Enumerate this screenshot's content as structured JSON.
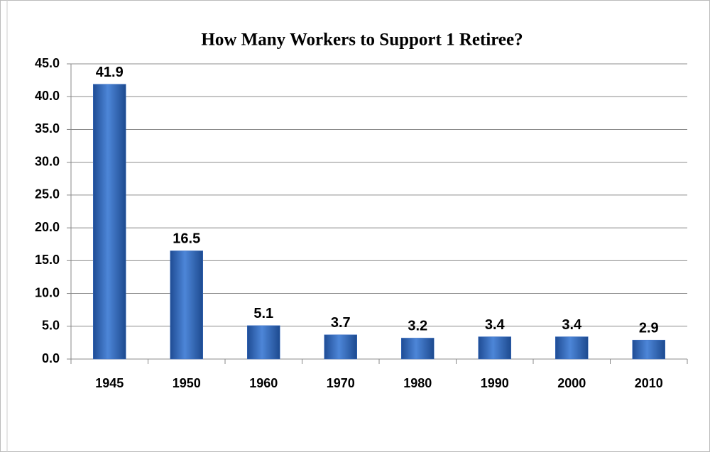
{
  "chart_data": {
    "type": "bar",
    "title": "How Many Workers to Support 1 Retiree?",
    "categories": [
      "1945",
      "1950",
      "1960",
      "1970",
      "1980",
      "1990",
      "2000",
      "2010"
    ],
    "values": [
      41.9,
      16.5,
      5.1,
      3.7,
      3.2,
      3.4,
      3.4,
      2.9
    ],
    "color": "#3a6fc4",
    "ylim": [
      0,
      45
    ],
    "yticks": [
      {
        "value": 0,
        "label": "0.0"
      },
      {
        "value": 5,
        "label": "5.0"
      },
      {
        "value": 10,
        "label": "10.0"
      },
      {
        "value": 15,
        "label": "15.0"
      },
      {
        "value": 20,
        "label": "20.0"
      },
      {
        "value": 25,
        "label": "25.0"
      },
      {
        "value": 30,
        "label": "30.0"
      },
      {
        "value": 35,
        "label": "35.0"
      },
      {
        "value": 40,
        "label": "40.0"
      },
      {
        "value": 45,
        "label": "45.0"
      }
    ],
    "grid": true
  }
}
